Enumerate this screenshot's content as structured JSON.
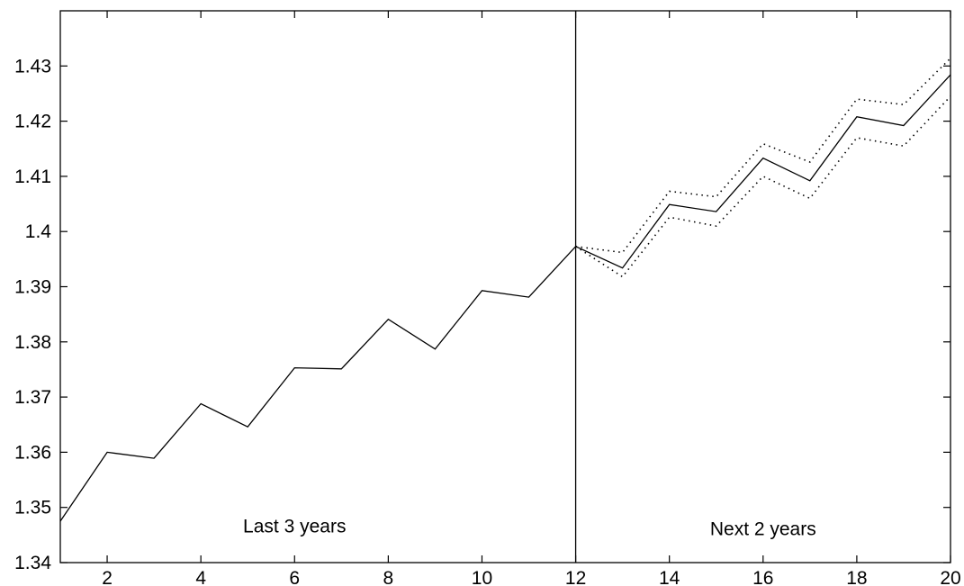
{
  "chart_data": {
    "type": "line",
    "title": "",
    "xlabel": "",
    "ylabel": "",
    "xlim": [
      1,
      20
    ],
    "ylim": [
      1.34,
      1.44
    ],
    "xticks": [
      2,
      4,
      6,
      8,
      10,
      12,
      14,
      16,
      18,
      20
    ],
    "yticks": [
      1.34,
      1.35,
      1.36,
      1.37,
      1.38,
      1.39,
      1.4,
      1.41,
      1.42,
      1.43
    ],
    "ytick_labels": [
      "1.34",
      "1.35",
      "1.36",
      "1.37",
      "1.38",
      "1.39",
      "1.4",
      "1.41",
      "1.42",
      "1.43"
    ],
    "grid": false,
    "series": [
      {
        "style": "solid",
        "x": [
          1,
          2,
          3,
          4,
          5,
          6,
          7,
          8,
          9,
          10,
          11,
          12,
          13,
          14,
          15,
          16,
          17,
          18,
          19,
          20
        ],
        "values": [
          1.3475,
          1.36,
          1.3589,
          1.3688,
          1.3646,
          1.3753,
          1.3751,
          1.3841,
          1.3787,
          1.3893,
          1.3881,
          1.3973,
          1.3934,
          1.4049,
          1.4036,
          1.4133,
          1.4092,
          1.4208,
          1.4192,
          1.4284
        ]
      },
      {
        "style": "dotted",
        "x": [
          12,
          13,
          14,
          15,
          16,
          17,
          18,
          19,
          20
        ],
        "values": [
          1.3973,
          1.3962,
          1.4073,
          1.4063,
          1.4159,
          1.4126,
          1.424,
          1.423,
          1.4314
        ]
      },
      {
        "style": "dotted",
        "x": [
          12,
          13,
          14,
          15,
          16,
          17,
          18,
          19,
          20
        ],
        "values": [
          1.3973,
          1.3918,
          1.4026,
          1.401,
          1.41,
          1.406,
          1.417,
          1.4155,
          1.4245
        ]
      }
    ],
    "vertical_line_x": 12,
    "annotations": [
      {
        "text": "Last 3 years",
        "x": 6,
        "y": 1.3455
      },
      {
        "text": "Next 2 years",
        "x": 16,
        "y": 1.345
      }
    ]
  }
}
